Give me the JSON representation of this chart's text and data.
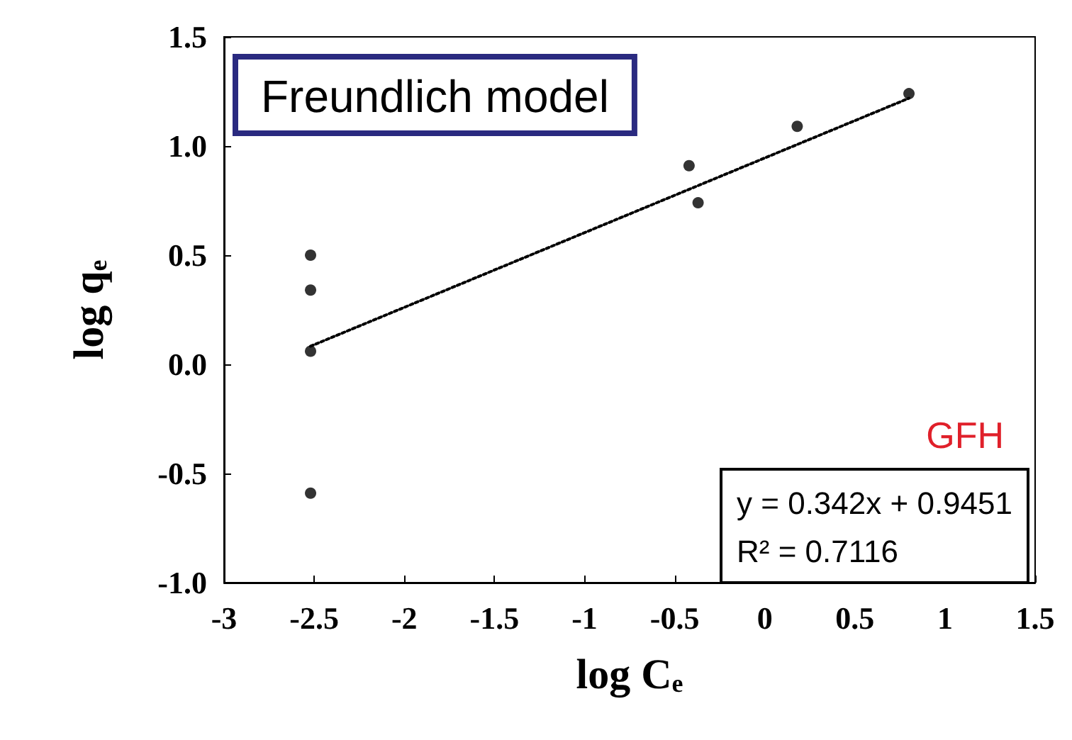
{
  "chart_data": {
    "type": "scatter",
    "xlabel": "log C$_{e}$",
    "ylabel": "log q$_{e}$",
    "xlim": [
      -3,
      1.5
    ],
    "xticks": [
      -3,
      -2.5,
      -2,
      -1.5,
      -1,
      -0.5,
      0,
      0.5,
      1,
      1.5
    ],
    "ylim": [
      -1,
      1.5
    ],
    "yticks": [
      {
        "value": -1,
        "label": "-1.0"
      },
      {
        "value": -0.5,
        "label": "-0.5"
      },
      {
        "value": 0,
        "label": "0.0"
      },
      {
        "value": 0.5,
        "label": "0.5"
      },
      {
        "value": 1,
        "label": "1.0"
      },
      {
        "value": 1.5,
        "label": "1.5"
      }
    ],
    "grid": false,
    "marker": "circle",
    "series": [
      {
        "color": "#000000",
        "x": [
          -2.52,
          -2.52,
          -2.52,
          -2.52,
          -0.42,
          -0.37,
          0.18,
          0.8
        ],
        "values": [
          0.5,
          0.34,
          0.06,
          -0.59,
          0.91,
          0.74,
          1.09,
          1.24
        ]
      },
      {
        "type": "line",
        "color": "#000000",
        "line_style": "dotted",
        "marker": "none",
        "x": [
          -2.52,
          0.8
        ],
        "values": [
          0.083,
          1.219
        ]
      }
    ],
    "annotations": [
      "Freundlich model",
      "GFH",
      "y = 0.342x + 0.9451",
      "R² = 0.7116"
    ]
  }
}
